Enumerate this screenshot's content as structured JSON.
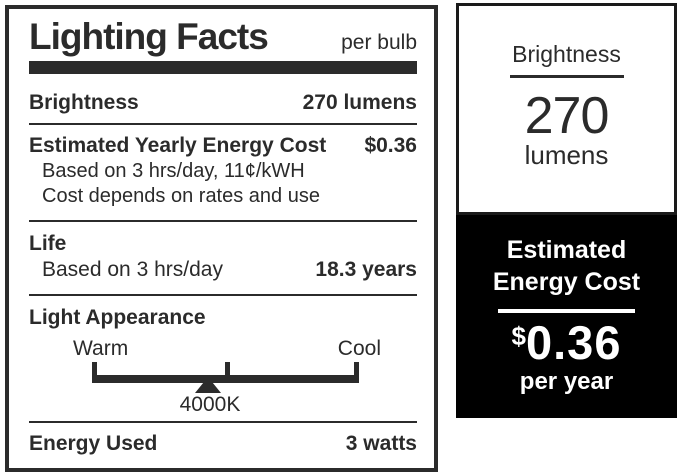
{
  "colors": {
    "ink": "#2b2b2b",
    "badge_bg": "#000000",
    "badge_text": "#ffffff"
  },
  "label": {
    "title": "Lighting Facts",
    "unit": "per bulb",
    "brightness": {
      "label": "Brightness",
      "value": "270 lumens"
    },
    "energy_cost": {
      "label": "Estimated Yearly Energy Cost",
      "value": "$0.36",
      "note1": "Based on 3 hrs/day, 11¢/kWH",
      "note2": "Cost depends on rates and use"
    },
    "life": {
      "label": "Life",
      "note": "Based on 3 hrs/day",
      "value": "18.3 years"
    },
    "light_appearance": {
      "label": "Light Appearance",
      "warm": "Warm",
      "cool": "Cool",
      "marker": "4000K"
    },
    "energy_used": {
      "label": "Energy Used",
      "value": "3 watts"
    }
  },
  "badge": {
    "brightness": {
      "title": "Brightness",
      "value": "270",
      "unit": "lumens"
    },
    "cost": {
      "title_line1": "Estimated",
      "title_line2": "Energy Cost",
      "currency": "$",
      "value": "0.36",
      "period": "per year"
    }
  }
}
